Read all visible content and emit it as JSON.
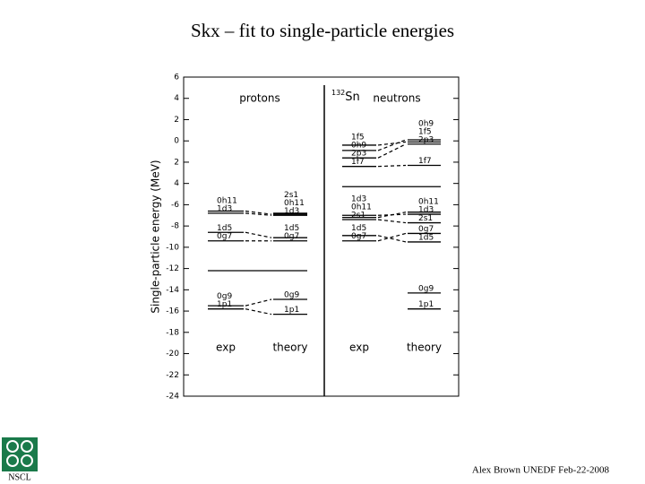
{
  "chart_data": {
    "type": "level_diagram",
    "title": "Skx – fit to single-particle energies",
    "ylabel": "Single-particle energy (MeV)",
    "nucleus": {
      "mass": "132",
      "symbol": "Sn"
    },
    "ylim": [
      -24,
      6
    ],
    "yticks": [
      6,
      4,
      2,
      0,
      {
        "value": -2,
        "label": "2"
      },
      {
        "value": -4,
        "label": "4"
      },
      -6,
      -8,
      -10,
      -12,
      -14,
      -16,
      -18,
      -20,
      -22,
      -24
    ],
    "color": "#000000",
    "groups": [
      {
        "name": "protons",
        "separator": -12.2,
        "columns": [
          {
            "name": "exp",
            "levels": [
              {
                "label": "0h11",
                "value": -6.6
              },
              {
                "label": "1d3",
                "value": -6.8
              },
              {
                "label": "1d5",
                "value": -8.6
              },
              {
                "label": "0g7",
                "value": -9.4
              },
              {
                "label": "0g9",
                "value": -15.5
              },
              {
                "label": "1p1",
                "value": -15.8
              }
            ]
          },
          {
            "name": "theory",
            "levels": [
              {
                "label": "2s1",
                "value": -6.8
              },
              {
                "label": "0h11",
                "value": -6.9
              },
              {
                "label": "1d3",
                "value": -7.0
              },
              {
                "label": "1d5",
                "value": -9.1
              },
              {
                "label": "0g7",
                "value": -9.4
              },
              {
                "label": "0g9",
                "value": -14.9
              },
              {
                "label": "1p1",
                "value": -16.3
              }
            ]
          }
        ]
      },
      {
        "name": "neutrons",
        "separator": -4.3,
        "columns": [
          {
            "name": "exp",
            "levels": [
              {
                "label": "1f5",
                "value": -0.4
              },
              {
                "label": "0h9",
                "value": -0.9
              },
              {
                "label": "2p3",
                "value": -1.6
              },
              {
                "label": "1f7",
                "value": -2.4
              },
              {
                "label": "1d3",
                "value": -7.0
              },
              {
                "label": "0h11",
                "value": -7.2
              },
              {
                "label": "2s1",
                "value": -7.4
              },
              {
                "label": "1d5",
                "value": -8.9
              },
              {
                "label": "0g7",
                "value": -9.4
              }
            ]
          },
          {
            "name": "theory",
            "levels": [
              {
                "label": "0h9",
                "value": 0.1
              },
              {
                "label": "1f5",
                "value": -0.1
              },
              {
                "label": "2p3",
                "value": -0.3
              },
              {
                "label": "1f7",
                "value": -2.3
              },
              {
                "label": "0h11",
                "value": -6.7
              },
              {
                "label": "1d3",
                "value": -6.9
              },
              {
                "label": "2s1",
                "value": -7.7
              },
              {
                "label": "0g7",
                "value": -8.7
              },
              {
                "label": "1d5",
                "value": -9.5
              },
              {
                "label": "0g9",
                "value": -14.3
              },
              {
                "label": "1p1",
                "value": -15.8
              }
            ]
          }
        ]
      }
    ]
  },
  "footer": "Alex Brown UNEDF Feb-22-2008",
  "logo": "NSCL"
}
